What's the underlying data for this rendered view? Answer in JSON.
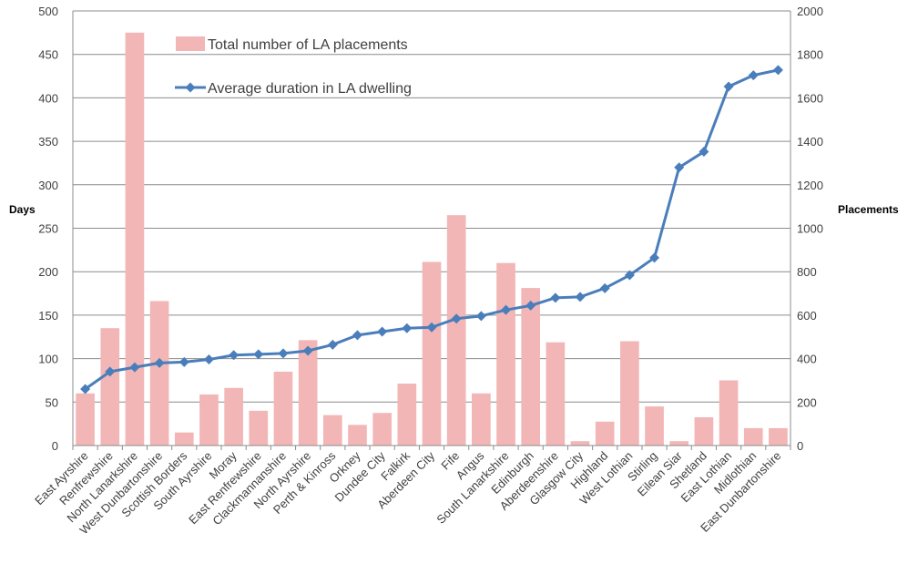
{
  "chart_data": {
    "type": "bar",
    "categories": [
      "East Ayrshire",
      "Renfrewshire",
      "North Lanarkshire",
      "West Dunbartonshire",
      "Scottish Borders",
      "South Ayrshire",
      "Moray",
      "East Renfrewshire",
      "Clackmannanshire",
      "North Ayrshire",
      "Perth & Kinross",
      "Orkney",
      "Dundee City",
      "Falkirk",
      "Aberdeen City",
      "Fife",
      "Angus",
      "South Lanarkshire",
      "Edinburgh",
      "Aberdeenshire",
      "Glasgow City",
      "Highland",
      "West Lothian",
      "Stirling",
      "Eilean Siar",
      "Shetland",
      "East Lothian",
      "Midlothian",
      "East Dunbartonshire"
    ],
    "series": [
      {
        "name": "Total number of LA placements",
        "type": "bar",
        "axis": "right",
        "color": "#F2B6B6",
        "values": [
          240,
          540,
          1900,
          665,
          60,
          235,
          265,
          160,
          340,
          485,
          140,
          95,
          150,
          285,
          845,
          1060,
          240,
          840,
          725,
          475,
          20,
          110,
          480,
          180,
          20,
          130,
          300,
          80,
          80
        ]
      },
      {
        "name": "Average duration in LA dwelling",
        "type": "line",
        "axis": "left",
        "color": "#4A7EBB",
        "values": [
          65,
          85,
          90,
          95,
          96,
          99,
          104,
          105,
          106,
          109,
          116,
          127,
          131,
          135,
          136,
          146,
          149,
          156,
          161,
          170,
          171,
          181,
          196,
          216,
          320,
          338,
          413,
          426,
          432
        ]
      }
    ],
    "y_left": {
      "label": "Days",
      "range": [
        0,
        500
      ],
      "ticks": [
        "0",
        "50",
        "100",
        "150",
        "200",
        "250",
        "300",
        "350",
        "400",
        "450",
        "500"
      ]
    },
    "y_right": {
      "label": "Placements",
      "range": [
        0,
        2000
      ],
      "ticks": [
        "0",
        "200",
        "400",
        "600",
        "800",
        "1000",
        "1200",
        "1400",
        "1600",
        "1800",
        "2000"
      ]
    },
    "grid": true,
    "legend_position": "top-left"
  }
}
